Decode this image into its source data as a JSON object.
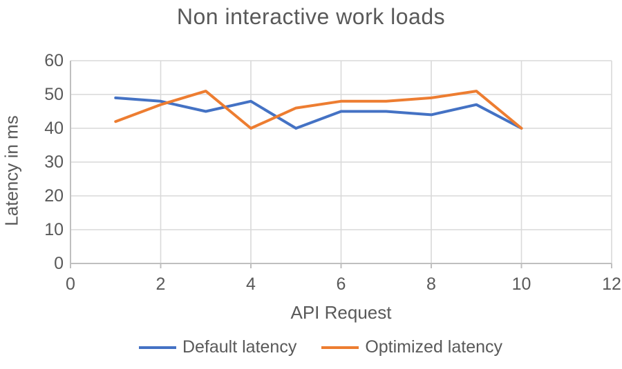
{
  "chart_data": {
    "type": "line",
    "title": "Non interactive work loads",
    "xlabel": "API Request",
    "ylabel": "Latency in ms",
    "x": [
      1,
      2,
      3,
      4,
      5,
      6,
      7,
      8,
      9,
      10
    ],
    "series": [
      {
        "name": "Default latency",
        "color": "#4472C4",
        "values": [
          49,
          48,
          45,
          48,
          40,
          45,
          45,
          44,
          47,
          40
        ]
      },
      {
        "name": "Optimized latency",
        "color": "#ED7D31",
        "values": [
          42,
          47,
          51,
          40,
          46,
          48,
          48,
          49,
          51,
          40
        ]
      }
    ],
    "xlim": [
      0,
      12
    ],
    "ylim": [
      0,
      60
    ],
    "xticks": [
      0,
      2,
      4,
      6,
      8,
      10,
      12
    ],
    "yticks": [
      0,
      10,
      20,
      30,
      40,
      50,
      60
    ],
    "grid": true,
    "legend_position": "bottom"
  },
  "style": {
    "gridline_color": "#D9D9D9",
    "axis_color": "#BFBFBF",
    "text_color": "#595959",
    "line_width": 4
  }
}
